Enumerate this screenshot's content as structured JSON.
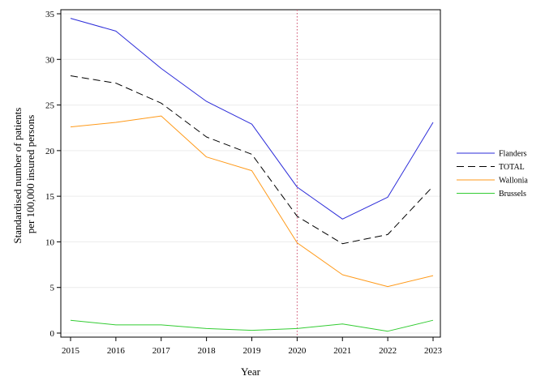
{
  "chart_data": {
    "type": "line",
    "xlabel": "Year",
    "ylabel_lines": [
      "Standardised number of patients",
      "per 100,000 insured persons"
    ],
    "x": [
      2015,
      2016,
      2017,
      2018,
      2019,
      2020,
      2021,
      2022,
      2023
    ],
    "xlim": [
      2015,
      2023
    ],
    "ylim": [
      0,
      35
    ],
    "yticks": [
      0,
      5,
      10,
      15,
      20,
      25,
      30,
      35
    ],
    "grid": true,
    "reference_line": {
      "x": 2020,
      "color": "#cc4c6a",
      "style": "dotted"
    },
    "legend_position": "right",
    "series": [
      {
        "name": "Flanders",
        "color": "#2b2bd9",
        "style": "solid",
        "values": [
          34.5,
          33.1,
          29.0,
          25.4,
          22.9,
          16.0,
          12.5,
          14.9,
          23.1
        ]
      },
      {
        "name": "TOTAL",
        "color": "#000000",
        "style": "dashed",
        "values": [
          28.2,
          27.4,
          25.2,
          21.5,
          19.6,
          12.8,
          9.8,
          10.8,
          16.1
        ]
      },
      {
        "name": "Wallonia",
        "color": "#ff9a1a",
        "style": "solid",
        "values": [
          22.6,
          23.1,
          23.8,
          19.3,
          17.8,
          9.9,
          6.4,
          5.1,
          6.3
        ]
      },
      {
        "name": "Brussels",
        "color": "#33cc33",
        "style": "solid",
        "values": [
          1.4,
          0.9,
          0.9,
          0.5,
          0.3,
          0.5,
          1.0,
          0.2,
          1.4
        ]
      }
    ]
  }
}
